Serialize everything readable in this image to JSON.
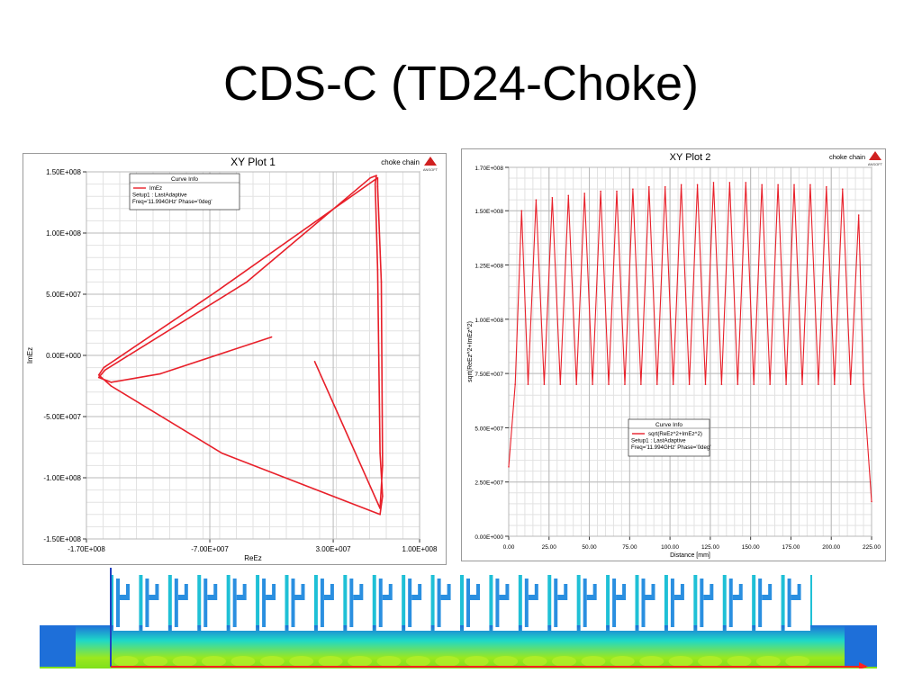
{
  "slide": {
    "title": "CDS-C (TD24-Choke)"
  },
  "chart_data": [
    {
      "type": "line",
      "title": "XY Plot 1",
      "subtitle": "choke chain",
      "logo": "ANSOFT",
      "xlabel": "ReEz",
      "ylabel": "ImEz",
      "xlim": [
        -170000000,
        100000000
      ],
      "ylim": [
        -150000000,
        150000000
      ],
      "xticks": [
        "-1.70E+008",
        "-7.00E+007",
        "3.00E+007",
        "1.00E+008"
      ],
      "yticks": [
        "1.50E+008",
        "1.00E+008",
        "5.00E+007",
        "0.00E+000",
        "-5.00E+007",
        "-1.00E+008",
        "-1.50E+008"
      ],
      "grid": true,
      "legend": {
        "title": "Curve Info",
        "entries": [
          "ImEz",
          "Setup1 : LastAdaptive",
          "Freq='11.994GHz' Phase='0deg'"
        ],
        "placement": "top-left"
      },
      "series": [
        {
          "name": "ImEz",
          "color": "#e8202a",
          "x": [
            -20000000,
            -110000000,
            -150000000,
            -160000000,
            -155000000,
            -40000000,
            60000000,
            65000000,
            64000000,
            66000000,
            68000000,
            70000000,
            68000000,
            -60000000,
            -150000000,
            -160000000,
            -156000000,
            -65000000,
            63000000,
            66000000,
            66000000,
            69000000,
            70000000,
            68000000,
            15000000
          ],
          "y": [
            15000000,
            -15000000,
            -22000000,
            -18000000,
            -12000000,
            60000000,
            145000000,
            147000000,
            140000000,
            70000000,
            -80000000,
            -115000000,
            -130000000,
            -80000000,
            -25000000,
            -16000000,
            -10000000,
            52000000,
            143000000,
            145000000,
            138000000,
            60000000,
            -90000000,
            -125000000,
            -5000000
          ]
        }
      ]
    },
    {
      "type": "line",
      "title": "XY Plot 2",
      "subtitle": "choke chain",
      "logo": "ANSOFT",
      "xlabel": "Distance [mm]",
      "ylabel": "sqrt(ReEz^2+ImEz^2)",
      "xlim": [
        0,
        225
      ],
      "ylim": [
        0,
        170000000
      ],
      "xticks": [
        "0.00",
        "25.00",
        "50.00",
        "75.00",
        "100.00",
        "125.00",
        "150.00",
        "175.00",
        "200.00",
        "225.00"
      ],
      "yticks": [
        "1.70E+008",
        "1.50E+008",
        "1.25E+008",
        "1.00E+008",
        "7.50E+007",
        "5.00E+007",
        "2.50E+007",
        "0.00E+000"
      ],
      "grid": true,
      "legend": {
        "title": "Curve Info",
        "entries": [
          "sqrt(ReEz^2+ImEz^2)",
          "Setup1 : LastAdaptive",
          "Freq='11.994GHz' Phase='0deg'"
        ],
        "placement": "bottom-center"
      },
      "series": [
        {
          "name": "sqrt(ReEz^2+ImEz^2)",
          "color": "#e8202a",
          "x": [
            0,
            4,
            8,
            12,
            17,
            22,
            27,
            32,
            37,
            42,
            47,
            52,
            57,
            62,
            67,
            72,
            77,
            82,
            87,
            92,
            97,
            102,
            107,
            112,
            117,
            122,
            127,
            132,
            137,
            142,
            147,
            152,
            157,
            162,
            167,
            172,
            177,
            182,
            187,
            192,
            197,
            202,
            207,
            212,
            217,
            220,
            225
          ],
          "y": [
            32000000,
            70000000,
            150000000,
            70000000,
            155000000,
            70000000,
            156000000,
            70000000,
            157000000,
            70000000,
            158000000,
            70000000,
            159000000,
            70000000,
            159000000,
            70000000,
            160000000,
            70000000,
            161000000,
            70000000,
            161000000,
            70000000,
            162000000,
            70000000,
            162000000,
            70000000,
            163000000,
            70000000,
            163000000,
            70000000,
            163000000,
            70000000,
            162000000,
            70000000,
            162000000,
            70000000,
            162000000,
            70000000,
            162000000,
            70000000,
            161000000,
            70000000,
            160000000,
            70000000,
            148000000,
            70000000,
            16000000
          ]
        }
      ]
    }
  ],
  "geometry_image": {
    "caption": "",
    "cell_count": 24,
    "colors": {
      "metal": "#ffffff",
      "field_low": "#1e6fd9",
      "field_mid": "#1ed8c8",
      "field_high": "#9be81e",
      "line": "#ff2020"
    }
  }
}
